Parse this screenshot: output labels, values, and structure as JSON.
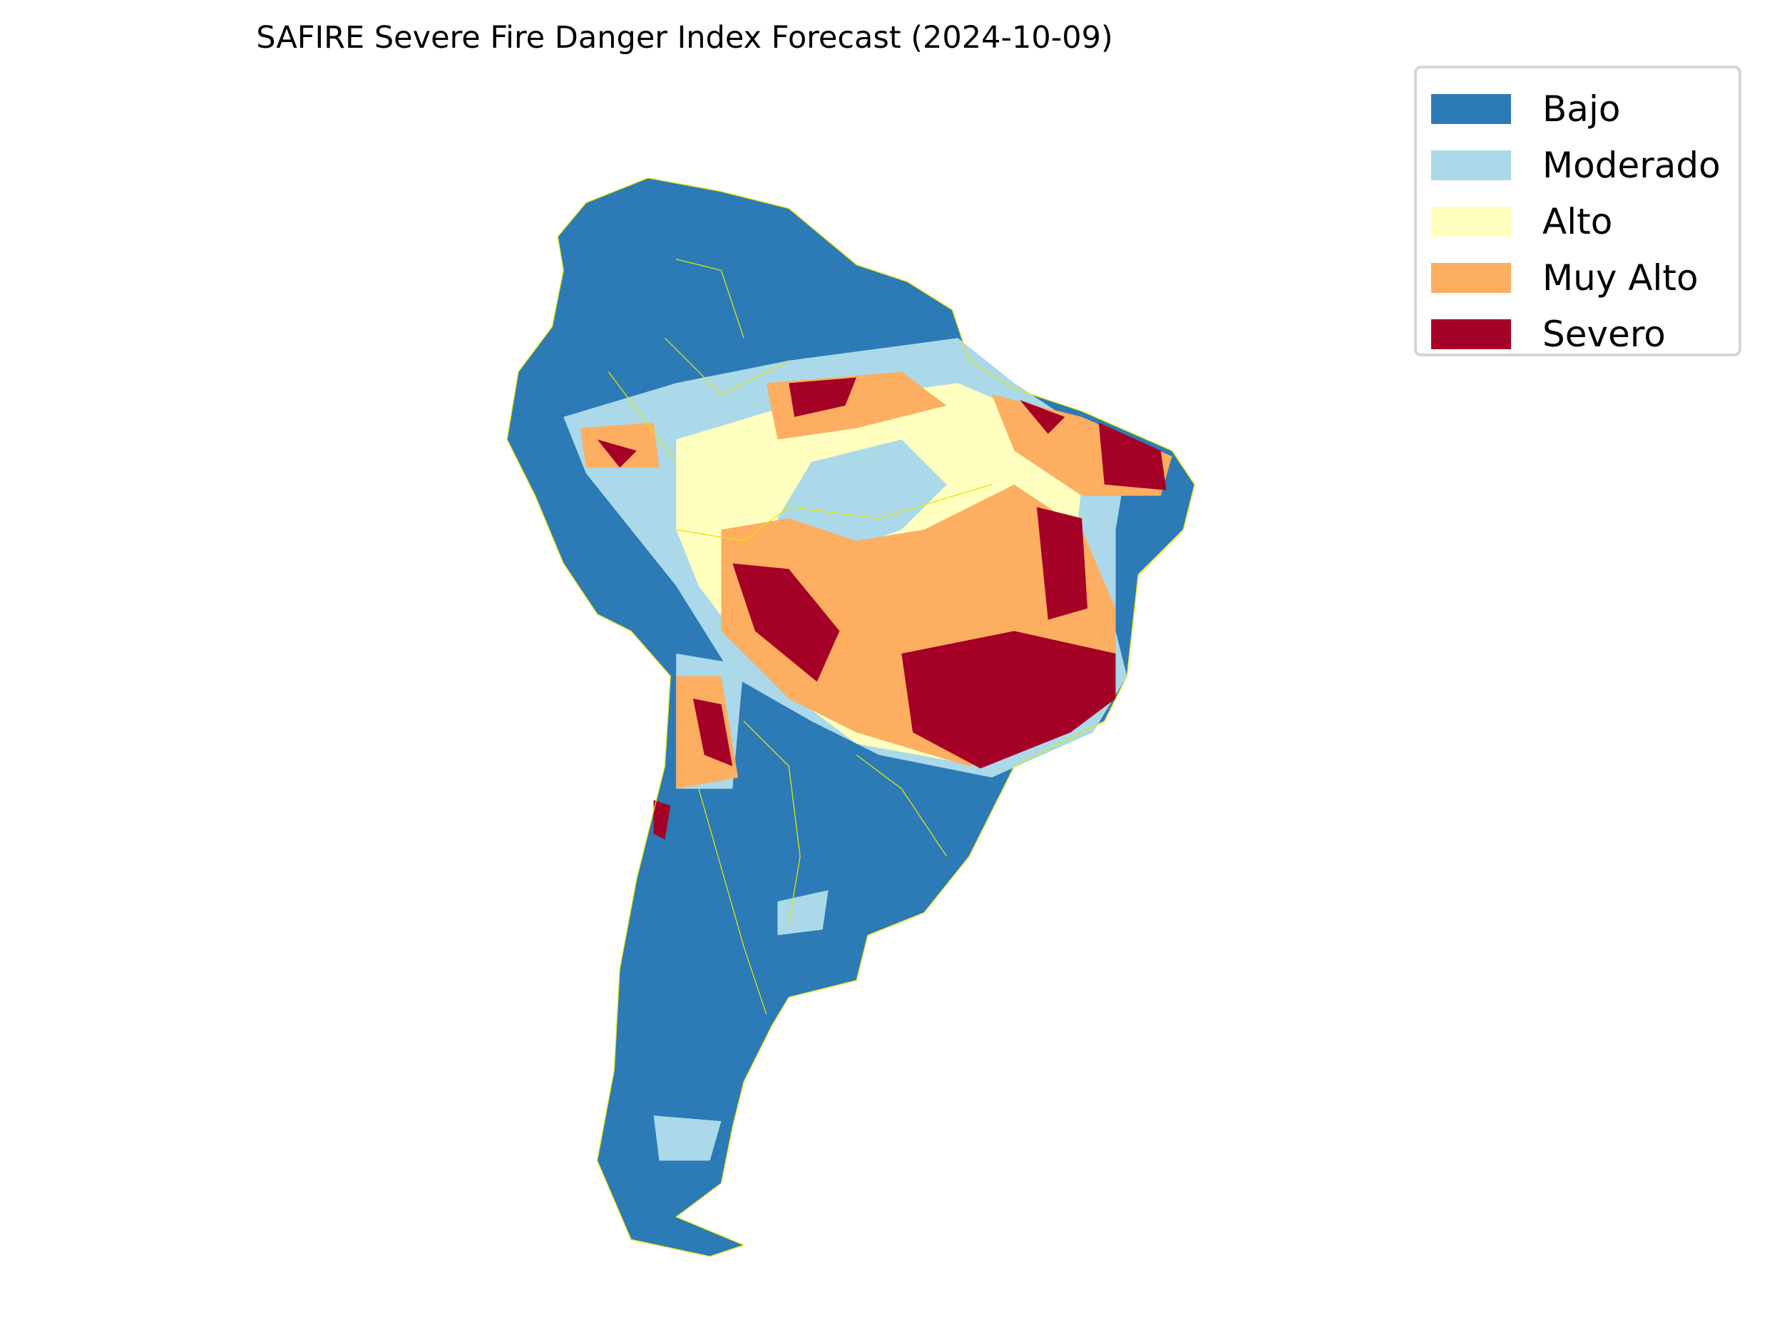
{
  "title": "SAFIRE Severe Fire Danger Index Forecast (2024-10-09)",
  "legend": [
    {
      "label": "Bajo",
      "color": "#2c7bb6"
    },
    {
      "label": "Moderado",
      "color": "#abd9e9"
    },
    {
      "label": "Alto",
      "color": "#ffffbf"
    },
    {
      "label": "Muy Alto",
      "color": "#fdae61"
    },
    {
      "label": "Severo",
      "color": "#a50026"
    }
  ],
  "border_color": "#e6e600",
  "chart_data": {
    "type": "heatmap",
    "title": "SAFIRE Severe Fire Danger Index Forecast (2024-10-09)",
    "region": "South America",
    "categories": [
      "Bajo",
      "Moderado",
      "Alto",
      "Muy Alto",
      "Severo"
    ],
    "legend_position": "top-right",
    "grid": false
  }
}
